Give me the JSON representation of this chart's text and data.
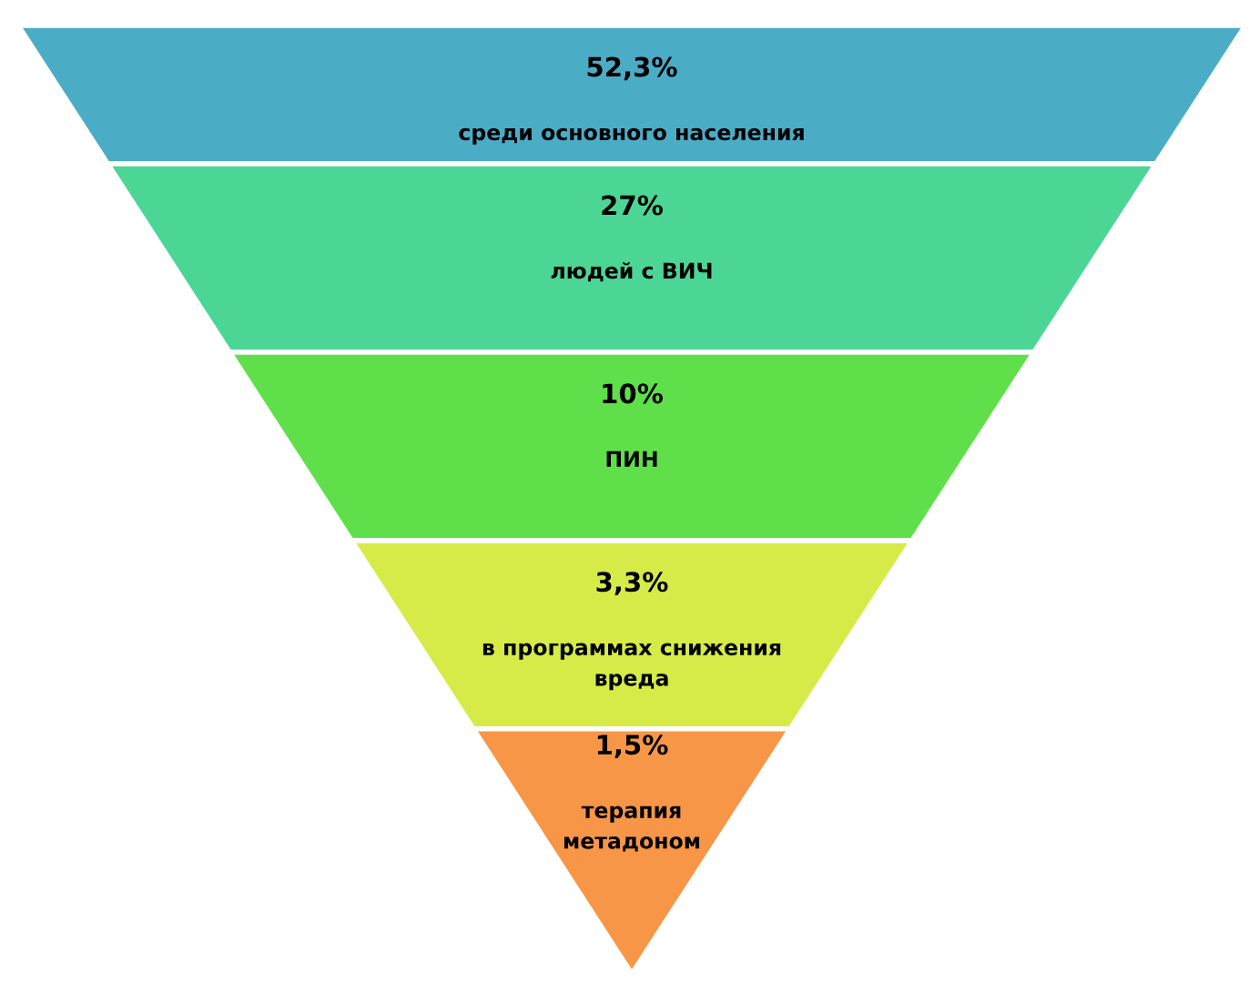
{
  "chart_data": {
    "type": "other",
    "categories": [
      "среди основного населения",
      "людей с ВИЧ",
      "ПИН",
      "в программах снижения вреда",
      "терапия метадоном"
    ],
    "values": [
      52.3,
      27,
      10,
      3.3,
      1.5
    ],
    "value_labels": [
      "52,3%",
      "27%",
      "10%",
      "3,3%",
      "1,5%"
    ],
    "colors": [
      "#4bacc6",
      "#4bd695",
      "#5fe04a",
      "#d6eb48",
      "#f79646"
    ]
  }
}
